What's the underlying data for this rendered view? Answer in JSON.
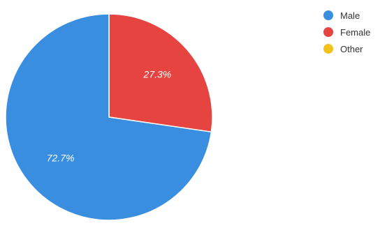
{
  "chart_data": {
    "type": "pie",
    "title": "",
    "legend_position": "top-right",
    "slices": [
      {
        "name": "Male",
        "value": 72.7,
        "label": "72.7%",
        "color": "#3a8ee0"
      },
      {
        "name": "Female",
        "value": 27.3,
        "label": "27.3%",
        "color": "#e64440"
      },
      {
        "name": "Other",
        "value": 0,
        "label": "",
        "color": "#f2c21b"
      }
    ]
  }
}
